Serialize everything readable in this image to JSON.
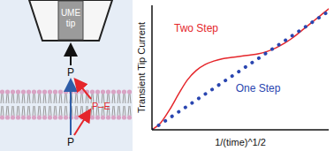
{
  "diagram": {
    "tip_label": "UME tip",
    "species": {
      "top": "P",
      "bottom": "P",
      "complex": "P–E"
    }
  },
  "chart_data": {
    "type": "line",
    "x": [
      0,
      0.05,
      0.1,
      0.15,
      0.2,
      0.25,
      0.3,
      0.35,
      0.4,
      0.45,
      0.5,
      0.55,
      0.6,
      0.65,
      0.7,
      0.75,
      0.8,
      0.85,
      0.9,
      0.95,
      1.0
    ],
    "series": [
      {
        "name": "Two Step",
        "color": "#e5262b",
        "line_style": "solid",
        "values": [
          0,
          0.06,
          0.17,
          0.3,
          0.42,
          0.5,
          0.55,
          0.58,
          0.6,
          0.61,
          0.62,
          0.63,
          0.64,
          0.66,
          0.69,
          0.73,
          0.78,
          0.84,
          0.9,
          0.96,
          1.02
        ]
      },
      {
        "name": "One Step",
        "color": "#2a46b0",
        "line_style": "dotted",
        "values": [
          0,
          0.05,
          0.1,
          0.15,
          0.2,
          0.25,
          0.3,
          0.35,
          0.4,
          0.45,
          0.5,
          0.55,
          0.6,
          0.65,
          0.7,
          0.75,
          0.8,
          0.85,
          0.9,
          0.95,
          1.0
        ]
      }
    ],
    "xlabel": "1/(time)^1/2",
    "ylabel": "Transient Tip Current",
    "xlim": [
      0,
      1
    ],
    "ylim": [
      0,
      1.05
    ],
    "tick_labels": false
  }
}
